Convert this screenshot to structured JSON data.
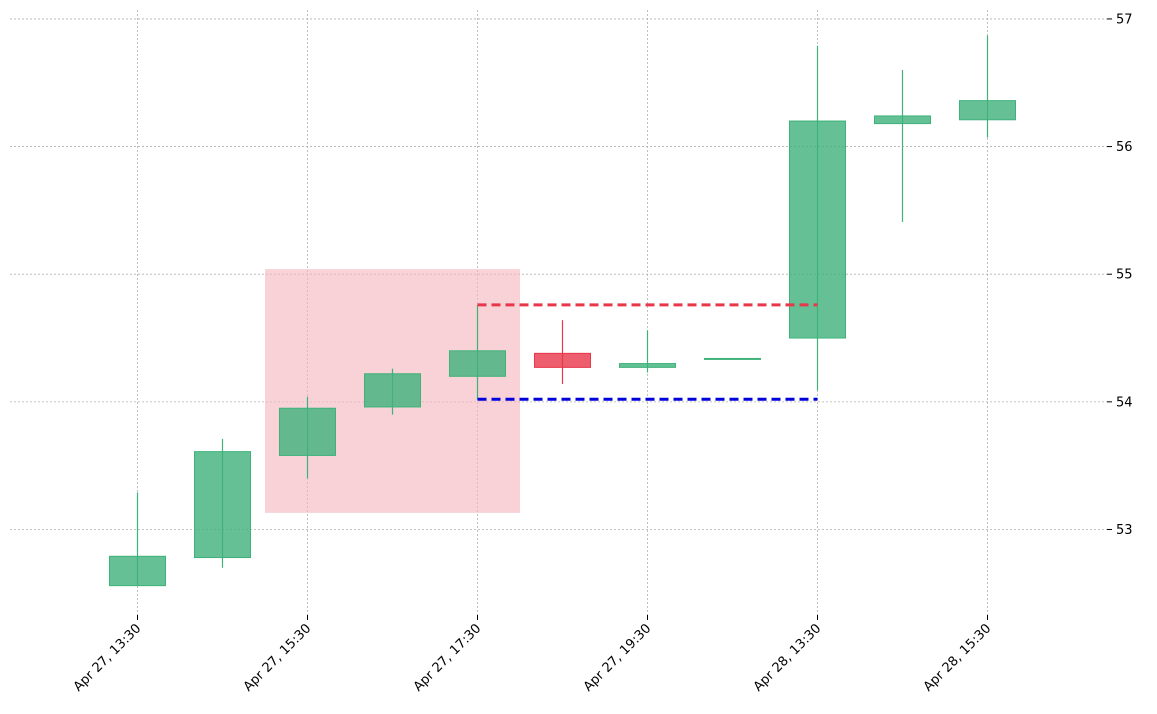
{
  "chart_data": {
    "type": "candlestick",
    "categories": [
      "Apr 27, 13:30",
      "",
      "Apr 27, 15:30",
      "",
      "Apr 27, 17:30",
      "",
      "Apr 27, 19:30",
      "",
      "Apr 28, 13:30",
      "",
      "Apr 28, 15:30"
    ],
    "candles": [
      {
        "open": 52.56,
        "high": 53.29,
        "low": 52.56,
        "close": 52.79
      },
      {
        "open": 52.78,
        "high": 53.71,
        "low": 52.7,
        "close": 53.61
      },
      {
        "open": 53.58,
        "high": 54.04,
        "low": 53.4,
        "close": 53.95
      },
      {
        "open": 53.96,
        "high": 54.26,
        "low": 53.9,
        "close": 54.22
      },
      {
        "open": 54.2,
        "high": 54.76,
        "low": 54.02,
        "close": 54.4
      },
      {
        "open": 54.38,
        "high": 54.64,
        "low": 54.14,
        "close": 54.27
      },
      {
        "open": 54.27,
        "high": 54.56,
        "low": 54.23,
        "close": 54.3
      },
      {
        "open": 54.34,
        "high": 54.34,
        "low": 54.34,
        "close": 54.34
      },
      {
        "open": 54.5,
        "high": 56.79,
        "low": 54.09,
        "close": 56.2
      },
      {
        "open": 56.18,
        "high": 56.6,
        "low": 55.41,
        "close": 56.24
      },
      {
        "open": 56.21,
        "high": 56.87,
        "low": 56.07,
        "close": 56.36
      }
    ],
    "yticks": [
      53,
      54,
      55,
      56,
      57
    ],
    "ylim": [
      52.33,
      57.07
    ],
    "grid": true,
    "y_axis_side": "right",
    "xlabel": "",
    "ylabel": "",
    "title": "",
    "highlight_zone": {
      "start_index": 1.5,
      "end_index": 4.5,
      "low": 53.13,
      "high": 55.04
    },
    "resistance_line": {
      "value": 54.76,
      "from_index": 4,
      "to_index": 8
    },
    "support_line": {
      "value": 54.02,
      "from_index": 4,
      "to_index": 8
    },
    "colors": {
      "up": "#3fb27a",
      "down": "#e8374a",
      "highlight_zone": "#f3b7bf",
      "resistance": "#e8374a",
      "support": "#0000dd",
      "grid": "#b0b0b0"
    }
  }
}
